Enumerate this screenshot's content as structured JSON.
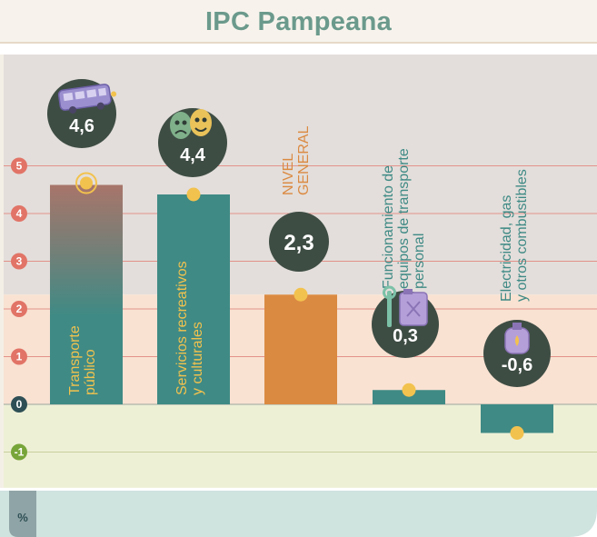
{
  "chart_data": {
    "type": "bar",
    "title": "IPC Pampeana",
    "unit_label": "%",
    "ylim": [
      -1.7,
      6.8
    ],
    "y_ticks": [
      "5",
      "4",
      "3",
      "2",
      "1",
      "0",
      "-1"
    ],
    "grid": true,
    "categories": [
      [
        "Transporte",
        "público"
      ],
      [
        "Servicios recreativos",
        "y culturales"
      ],
      [
        "NIVEL",
        "GENERAL"
      ],
      [
        "Funcionamiento de",
        "equipos de transporte",
        "personal"
      ],
      [
        "Electricidad, gas",
        "y otros combustibles"
      ]
    ],
    "values": [
      4.6,
      4.4,
      2.3,
      0.3,
      -0.6
    ],
    "value_labels": [
      "4,6",
      "4,4",
      "2,3",
      "0,3",
      "-0,6"
    ],
    "icons": [
      "bus-icon",
      "theater-masks-icon",
      "",
      "wrench-fuel-can-icon",
      "gas-cylinder-icon"
    ],
    "colors": {
      "bar_teal": "#3f8a85",
      "bar_orange": "#db8a42",
      "bar_gradient_top": "#a8756a",
      "bubble": "#3e4d44",
      "marker": "#f2c24e",
      "tick_positive": "#e17467",
      "tick_zero": "#2e4f55",
      "tick_negative": "#78a53a",
      "band_high": "#e3dedb",
      "band_mid": "#f9e2d2",
      "band_low": "#eef0d6",
      "footer": "#cfe3df"
    }
  }
}
